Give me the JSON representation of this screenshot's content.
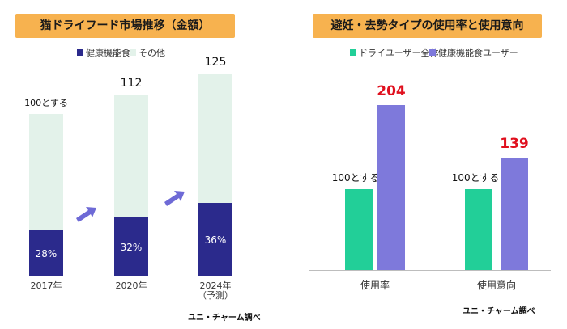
{
  "left_panel": {
    "title": "猫ドライフード市場推移（金額）",
    "source": "ユニ・チャーム調べ"
  },
  "right_panel": {
    "title": "避妊・去勢タイプの使用率と使用意向",
    "source": "ユニ・チャーム調べ"
  },
  "colors": {
    "title_bg": "#f7b24f",
    "health": "#2b2a8c",
    "other": "#e3f2ea",
    "overall": "#22cf98",
    "health_users": "#7e79db",
    "arrow": "#6e6ad6",
    "highlight_value": "#e0101e"
  },
  "chart_data": [
    {
      "type": "bar",
      "stacked": true,
      "title": "猫ドライフード市場推移（金額）",
      "categories": [
        "2017年",
        "2020年",
        "2024年（予測）"
      ],
      "legend": [
        "健康機能食",
        "その他"
      ],
      "legend_position": "top",
      "totals": [
        100,
        112,
        125
      ],
      "total_labels": [
        "100とする",
        "112",
        "125"
      ],
      "series": [
        {
          "name": "健康機能食",
          "values": [
            28,
            36,
            45
          ],
          "labels": [
            "28%",
            "32%",
            "36%"
          ]
        },
        {
          "name": "その他",
          "values": [
            72,
            76,
            80
          ]
        }
      ],
      "ylim": [
        0,
        125
      ],
      "grid": false
    },
    {
      "type": "bar",
      "title": "避妊・去勢タイプの使用率と使用意向",
      "categories": [
        "使用率",
        "使用意向"
      ],
      "legend": [
        "ドライユーザー全体",
        "健康機能食ユーザー"
      ],
      "legend_position": "top",
      "series": [
        {
          "name": "ドライユーザー全体",
          "values": [
            100,
            100
          ],
          "labels": [
            "100とする",
            "100とする"
          ]
        },
        {
          "name": "健康機能食ユーザー",
          "values": [
            204,
            139
          ],
          "labels": [
            "204",
            "139"
          ]
        }
      ],
      "ylim": [
        0,
        204
      ],
      "grid": false
    }
  ]
}
